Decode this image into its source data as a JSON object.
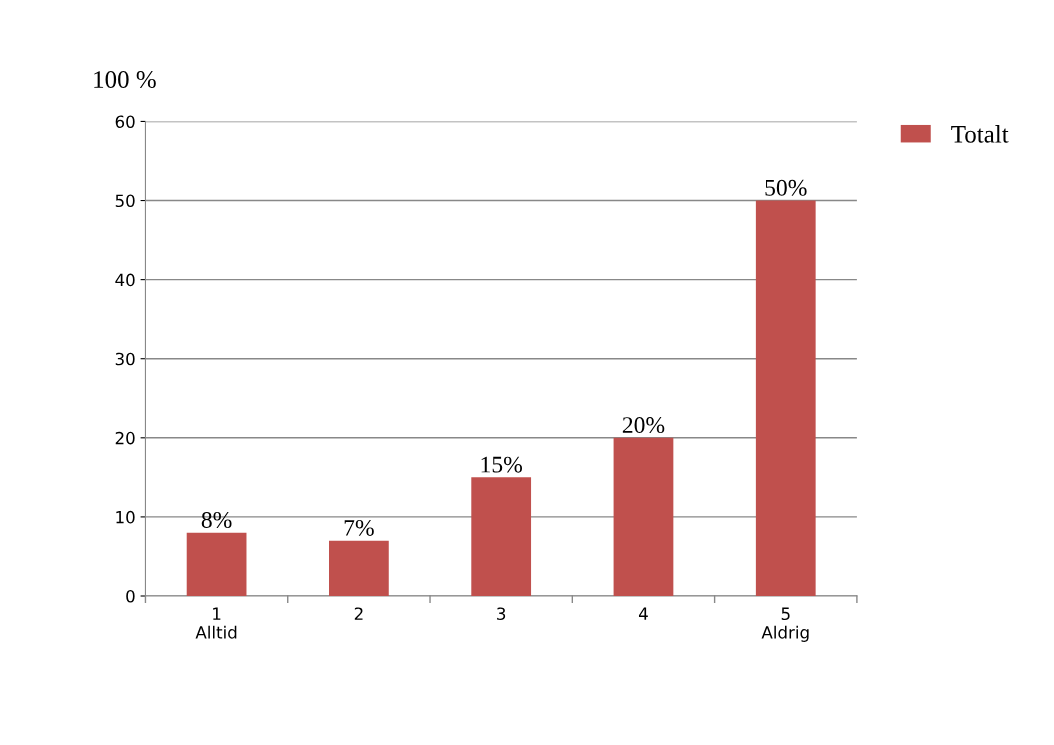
{
  "chart_data": {
    "type": "bar",
    "ylabel": "100 %",
    "categories": [
      "1\nAlltid",
      "2",
      "3",
      "4",
      "5\nAldrig"
    ],
    "series": [
      {
        "name": "Totalt",
        "color": "#c0504d",
        "values": [
          8,
          7,
          15,
          20,
          50
        ],
        "value_labels": [
          "8%",
          "7%",
          "15%",
          "20%",
          "50%"
        ]
      }
    ],
    "ylim": [
      0,
      60
    ],
    "yticks": [
      0,
      10,
      20,
      30,
      40,
      50,
      60
    ],
    "grid": "y",
    "legend": "top right"
  }
}
